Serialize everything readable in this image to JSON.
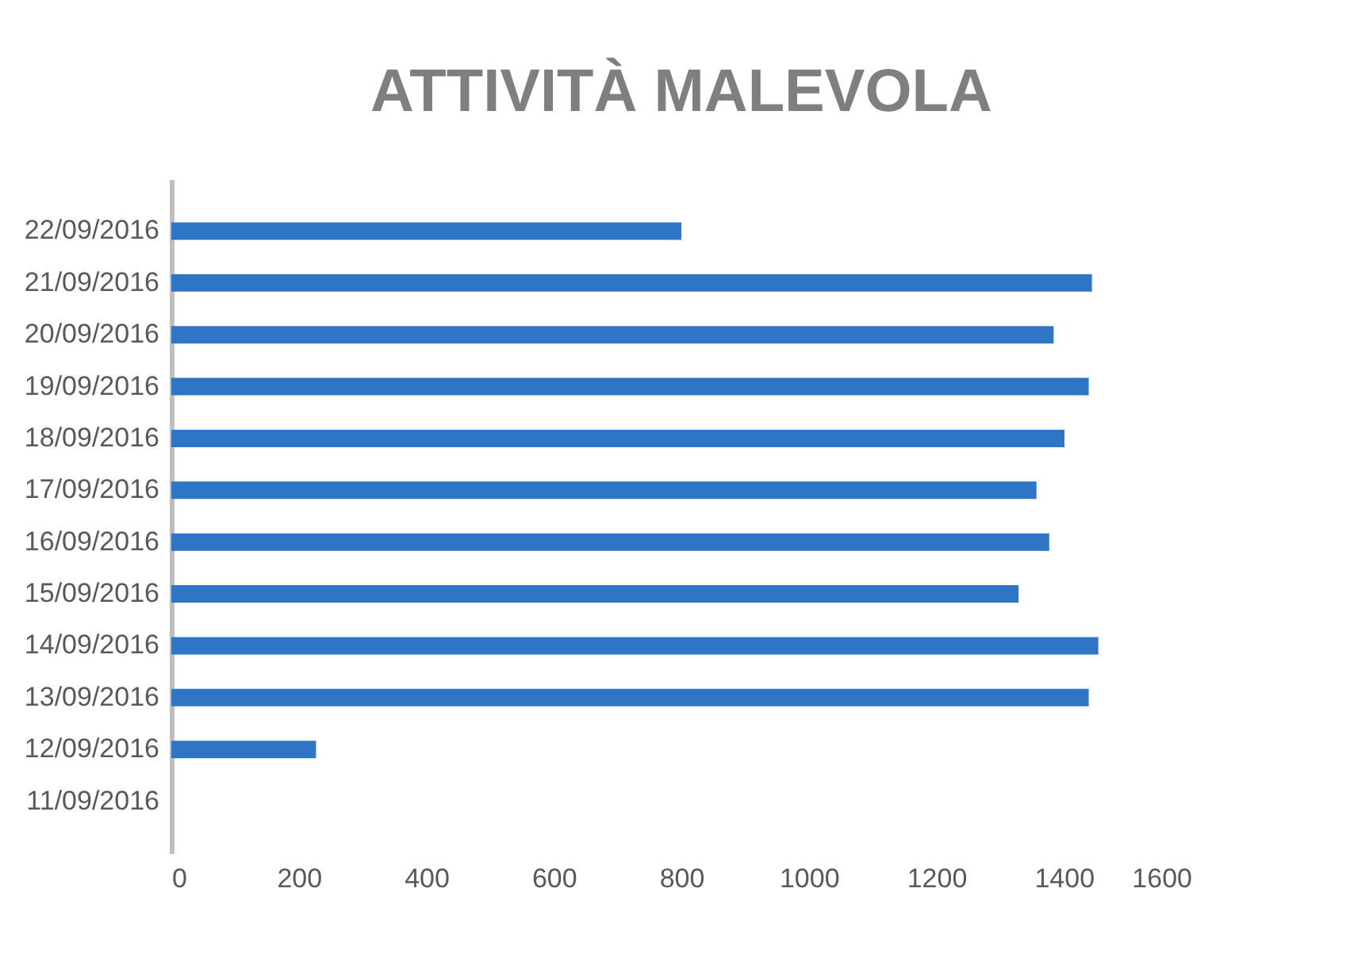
{
  "chart_data": {
    "type": "bar",
    "orientation": "horizontal",
    "title": "ATTIVITÀ MALEVOLA",
    "categories": [
      "22/09/2016",
      "21/09/2016",
      "20/09/2016",
      "19/09/2016",
      "18/09/2016",
      "17/09/2016",
      "16/09/2016",
      "15/09/2016",
      "14/09/2016",
      "13/09/2016",
      "12/09/2016",
      "11/09/2016"
    ],
    "values": [
      800,
      1444,
      1384,
      1439,
      1401,
      1357,
      1377,
      1329,
      1454,
      1439,
      227,
      0
    ],
    "color": "#2e75c6",
    "xlim": [
      0,
      1600
    ],
    "xticks": [
      0,
      200,
      400,
      600,
      800,
      1000,
      1200,
      1400,
      1600
    ],
    "grid": false
  }
}
